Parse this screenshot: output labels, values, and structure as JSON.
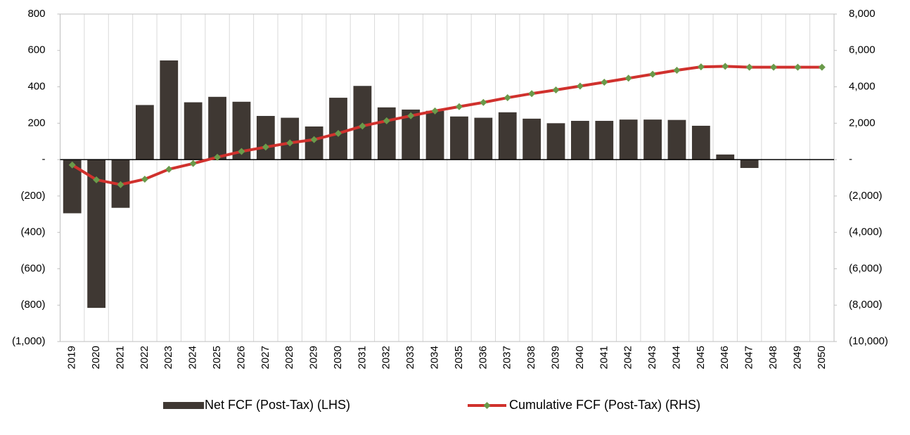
{
  "chart_data": {
    "type": "bar-line",
    "categories": [
      "2019",
      "2020",
      "2021",
      "2022",
      "2023",
      "2024",
      "2025",
      "2026",
      "2027",
      "2028",
      "2029",
      "2030",
      "2031",
      "2032",
      "2033",
      "2034",
      "2035",
      "2036",
      "2037",
      "2038",
      "2039",
      "2040",
      "2041",
      "2042",
      "2043",
      "2044",
      "2045",
      "2046",
      "2047",
      "2048",
      "2049",
      "2050"
    ],
    "series": [
      {
        "name": "Net FCF (Post-Tax) (LHS)",
        "type": "bar",
        "color": "#3f3833",
        "values": [
          -295,
          -815,
          -265,
          300,
          545,
          315,
          345,
          318,
          240,
          230,
          182,
          340,
          405,
          287,
          275,
          268,
          237,
          230,
          260,
          225,
          200,
          213,
          213,
          220,
          220,
          218,
          186,
          28,
          -46,
          0,
          0,
          0
        ]
      },
      {
        "name": "Cumulative FCF (Post-Tax) (RHS)",
        "type": "line",
        "axis": "y2",
        "color": "#d0312d",
        "marker_color": "#6a9a4a",
        "values": [
          -295,
          -1110,
          -1375,
          -1075,
          -530,
          -215,
          130,
          448,
          688,
          918,
          1100,
          1440,
          1845,
          2132,
          2407,
          2675,
          2912,
          3142,
          3402,
          3627,
          3827,
          4040,
          4253,
          4473,
          4693,
          4911,
          5097,
          5125,
          5079,
          5079,
          5079,
          5079
        ]
      }
    ],
    "ylim": [
      -1000,
      800
    ],
    "yticks": [
      {
        "value": -1000,
        "label": "(1,000)"
      },
      {
        "value": -800,
        "label": "(800)"
      },
      {
        "value": -600,
        "label": "(600)"
      },
      {
        "value": -400,
        "label": "(400)"
      },
      {
        "value": -200,
        "label": "(200)"
      },
      {
        "value": 0,
        "label": "-"
      },
      200,
      400,
      600,
      800
    ],
    "y2lim": [
      -10000,
      8000
    ],
    "y2ticks": [
      {
        "value": -10000,
        "label": "(10,000)"
      },
      {
        "value": -8000,
        "label": "(8,000)"
      },
      {
        "value": -6000,
        "label": "(6,000)"
      },
      {
        "value": -4000,
        "label": "(4,000)"
      },
      {
        "value": -2000,
        "label": "(2,000)"
      },
      {
        "value": 0,
        "label": "-"
      },
      {
        "value": 2000,
        "label": "2,000"
      },
      {
        "value": 4000,
        "label": "4,000"
      },
      {
        "value": 6000,
        "label": "6,000"
      },
      {
        "value": 8000,
        "label": "8,000"
      }
    ],
    "grid": "x",
    "legend": "bottom"
  }
}
